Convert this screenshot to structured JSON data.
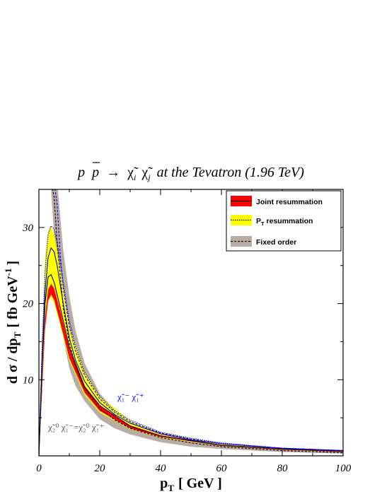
{
  "chart_data": {
    "type": "line",
    "title": "p p̄ → χ̃ᵢ χ̃ⱼ at the Tevatron (1.96 TeV)",
    "title_parts": {
      "p": "p",
      "pbar": "p",
      "arrow": "→",
      "chi": "χ̃",
      "sub_i": "i",
      "sub_j": "j",
      "rest": "at the Tevatron (1.96 TeV)"
    },
    "xlabel": "p",
    "xlabel_sub": "T",
    "xlabel_unit": "[ GeV ]",
    "ylabel": "d σ / dp",
    "ylabel_sub": "T",
    "ylabel_unit_open": "[ fb GeV",
    "ylabel_unit_sup": "-1",
    "ylabel_unit_close": "]",
    "xlim": [
      0,
      100
    ],
    "ylim": [
      0,
      35
    ],
    "xticks": [
      "0",
      "20",
      "40",
      "60",
      "80",
      "100"
    ],
    "yticks": [
      "10",
      "20",
      "30"
    ],
    "legend_position": "top-right",
    "legend": [
      {
        "label": "Joint resummation",
        "fill": "#ff0000",
        "line": "solid"
      },
      {
        "label": "P",
        "label_sub": "T",
        "label_rest": " resummation",
        "fill": "#ffff00",
        "line": "dotted"
      },
      {
        "label": "Fixed order",
        "fill": "#b9aca0",
        "line": "dashed"
      }
    ],
    "annotations": {
      "chargino": {
        "text": "χ̃₁⁻ χ̃₁⁺",
        "color": "#0000ff"
      },
      "neutralino": {
        "text": "χ̃₂⁰ χ̃₁⁻=χ̃₂⁰ χ̃₁⁺",
        "color": "#555555"
      }
    },
    "colors": {
      "joint": "#ff0000",
      "pt": "#ffff00",
      "fixed": "#b9aca0",
      "blue": "#0000ff"
    },
    "series": [
      {
        "name": "Joint resummation",
        "process": "neutralino-chargino",
        "x": [
          0,
          1,
          2,
          3,
          4,
          5,
          7,
          10,
          15,
          20,
          30,
          40,
          60,
          80,
          100
        ],
        "band_low": [
          0,
          8,
          16.5,
          20.3,
          21.2,
          20.5,
          17.5,
          12.8,
          8.3,
          5.9,
          3.6,
          2.5,
          1.3,
          0.8,
          0.5
        ],
        "band_high": [
          0,
          9,
          18,
          21.8,
          22.6,
          22.0,
          19.0,
          14.0,
          9.2,
          6.6,
          4.0,
          2.7,
          1.4,
          0.9,
          0.6
        ]
      },
      {
        "name": "P_T resummation",
        "process": "neutralino-chargino",
        "x": [
          0,
          1,
          2,
          3,
          4,
          5,
          7,
          10,
          15,
          20,
          30,
          40,
          60,
          80,
          100
        ],
        "band_low": [
          0,
          9,
          17,
          20.5,
          20.8,
          20,
          17,
          12.5,
          8,
          5.7,
          3.5,
          2.4,
          1.3,
          0.8,
          0.5
        ],
        "band_high": [
          0,
          15,
          26,
          29.5,
          30.3,
          29,
          24.5,
          17,
          11,
          7.8,
          4.6,
          3.1,
          1.6,
          1.0,
          0.7
        ]
      },
      {
        "name": "Fixed order",
        "process": "neutralino-chargino",
        "x": [
          3,
          4,
          5,
          6,
          8,
          10,
          12,
          15,
          20,
          25,
          30,
          40,
          50,
          60,
          80,
          100
        ],
        "band_low": [
          36,
          35,
          29,
          22,
          15.5,
          11.5,
          9.2,
          7.2,
          4.8,
          3.6,
          2.8,
          1.8,
          1.2,
          0.9,
          0.5,
          0.3
        ],
        "band_high": [
          36,
          36,
          36,
          36,
          27,
          21,
          16.5,
          12.2,
          8.2,
          6.0,
          4.6,
          3.0,
          2.1,
          1.5,
          0.9,
          0.6
        ]
      },
      {
        "name": "Joint resummation (central)",
        "process": "chargino-pair",
        "x": [
          0,
          1,
          2,
          3,
          4,
          5,
          6,
          7,
          8,
          10,
          12,
          15,
          20,
          25,
          30,
          40,
          50,
          60,
          80,
          100
        ],
        "y": [
          0,
          12,
          21.5,
          26,
          27.3,
          26.8,
          25,
          22.5,
          20,
          15.5,
          12.6,
          9.8,
          7.0,
          5.4,
          4.3,
          2.9,
          2.1,
          1.6,
          1.0,
          0.7
        ]
      },
      {
        "name": "P_T resummation (central)",
        "process": "chargino-pair",
        "x": [
          0,
          1,
          2,
          3,
          4,
          5,
          6,
          7,
          8,
          10,
          12,
          15,
          20,
          25,
          30,
          40,
          50,
          60,
          80,
          100
        ],
        "y": [
          0,
          14,
          24,
          29,
          30.2,
          29.8,
          28,
          25.5,
          22.8,
          17.8,
          14.4,
          11.0,
          7.8,
          5.9,
          4.7,
          3.1,
          2.3,
          1.7,
          1.0,
          0.7
        ]
      },
      {
        "name": "Fixed order (central)",
        "process": "chargino-pair",
        "x": [
          5,
          6,
          7,
          8,
          10,
          12,
          15,
          20,
          25,
          30,
          40,
          50,
          60,
          80,
          100
        ],
        "y": [
          36,
          33,
          26.5,
          22,
          17,
          13.8,
          10.6,
          7.5,
          5.7,
          4.5,
          3.0,
          2.2,
          1.6,
          1.0,
          0.7
        ]
      },
      {
        "name": "Joint resummation (central)",
        "process": "neutralino-chargino",
        "x": [
          0,
          1,
          2,
          3,
          4,
          5,
          7,
          10,
          15,
          20,
          30,
          40,
          60,
          80,
          100
        ],
        "y": [
          0,
          11,
          20,
          23.5,
          23.8,
          22.8,
          19.5,
          14.2,
          9.1,
          6.6,
          3.9,
          2.6,
          1.4,
          0.9,
          0.6
        ]
      },
      {
        "name": "Fixed order (central)",
        "process": "neutralino-chargino",
        "x": [
          4,
          5,
          6,
          8,
          10,
          12,
          15,
          20,
          25,
          30,
          40,
          50,
          60,
          80,
          100
        ],
        "y": [
          36,
          34,
          28,
          19.5,
          14.8,
          11.8,
          8.9,
          6.2,
          4.7,
          3.6,
          2.4,
          1.7,
          1.2,
          0.7,
          0.4
        ]
      }
    ]
  }
}
